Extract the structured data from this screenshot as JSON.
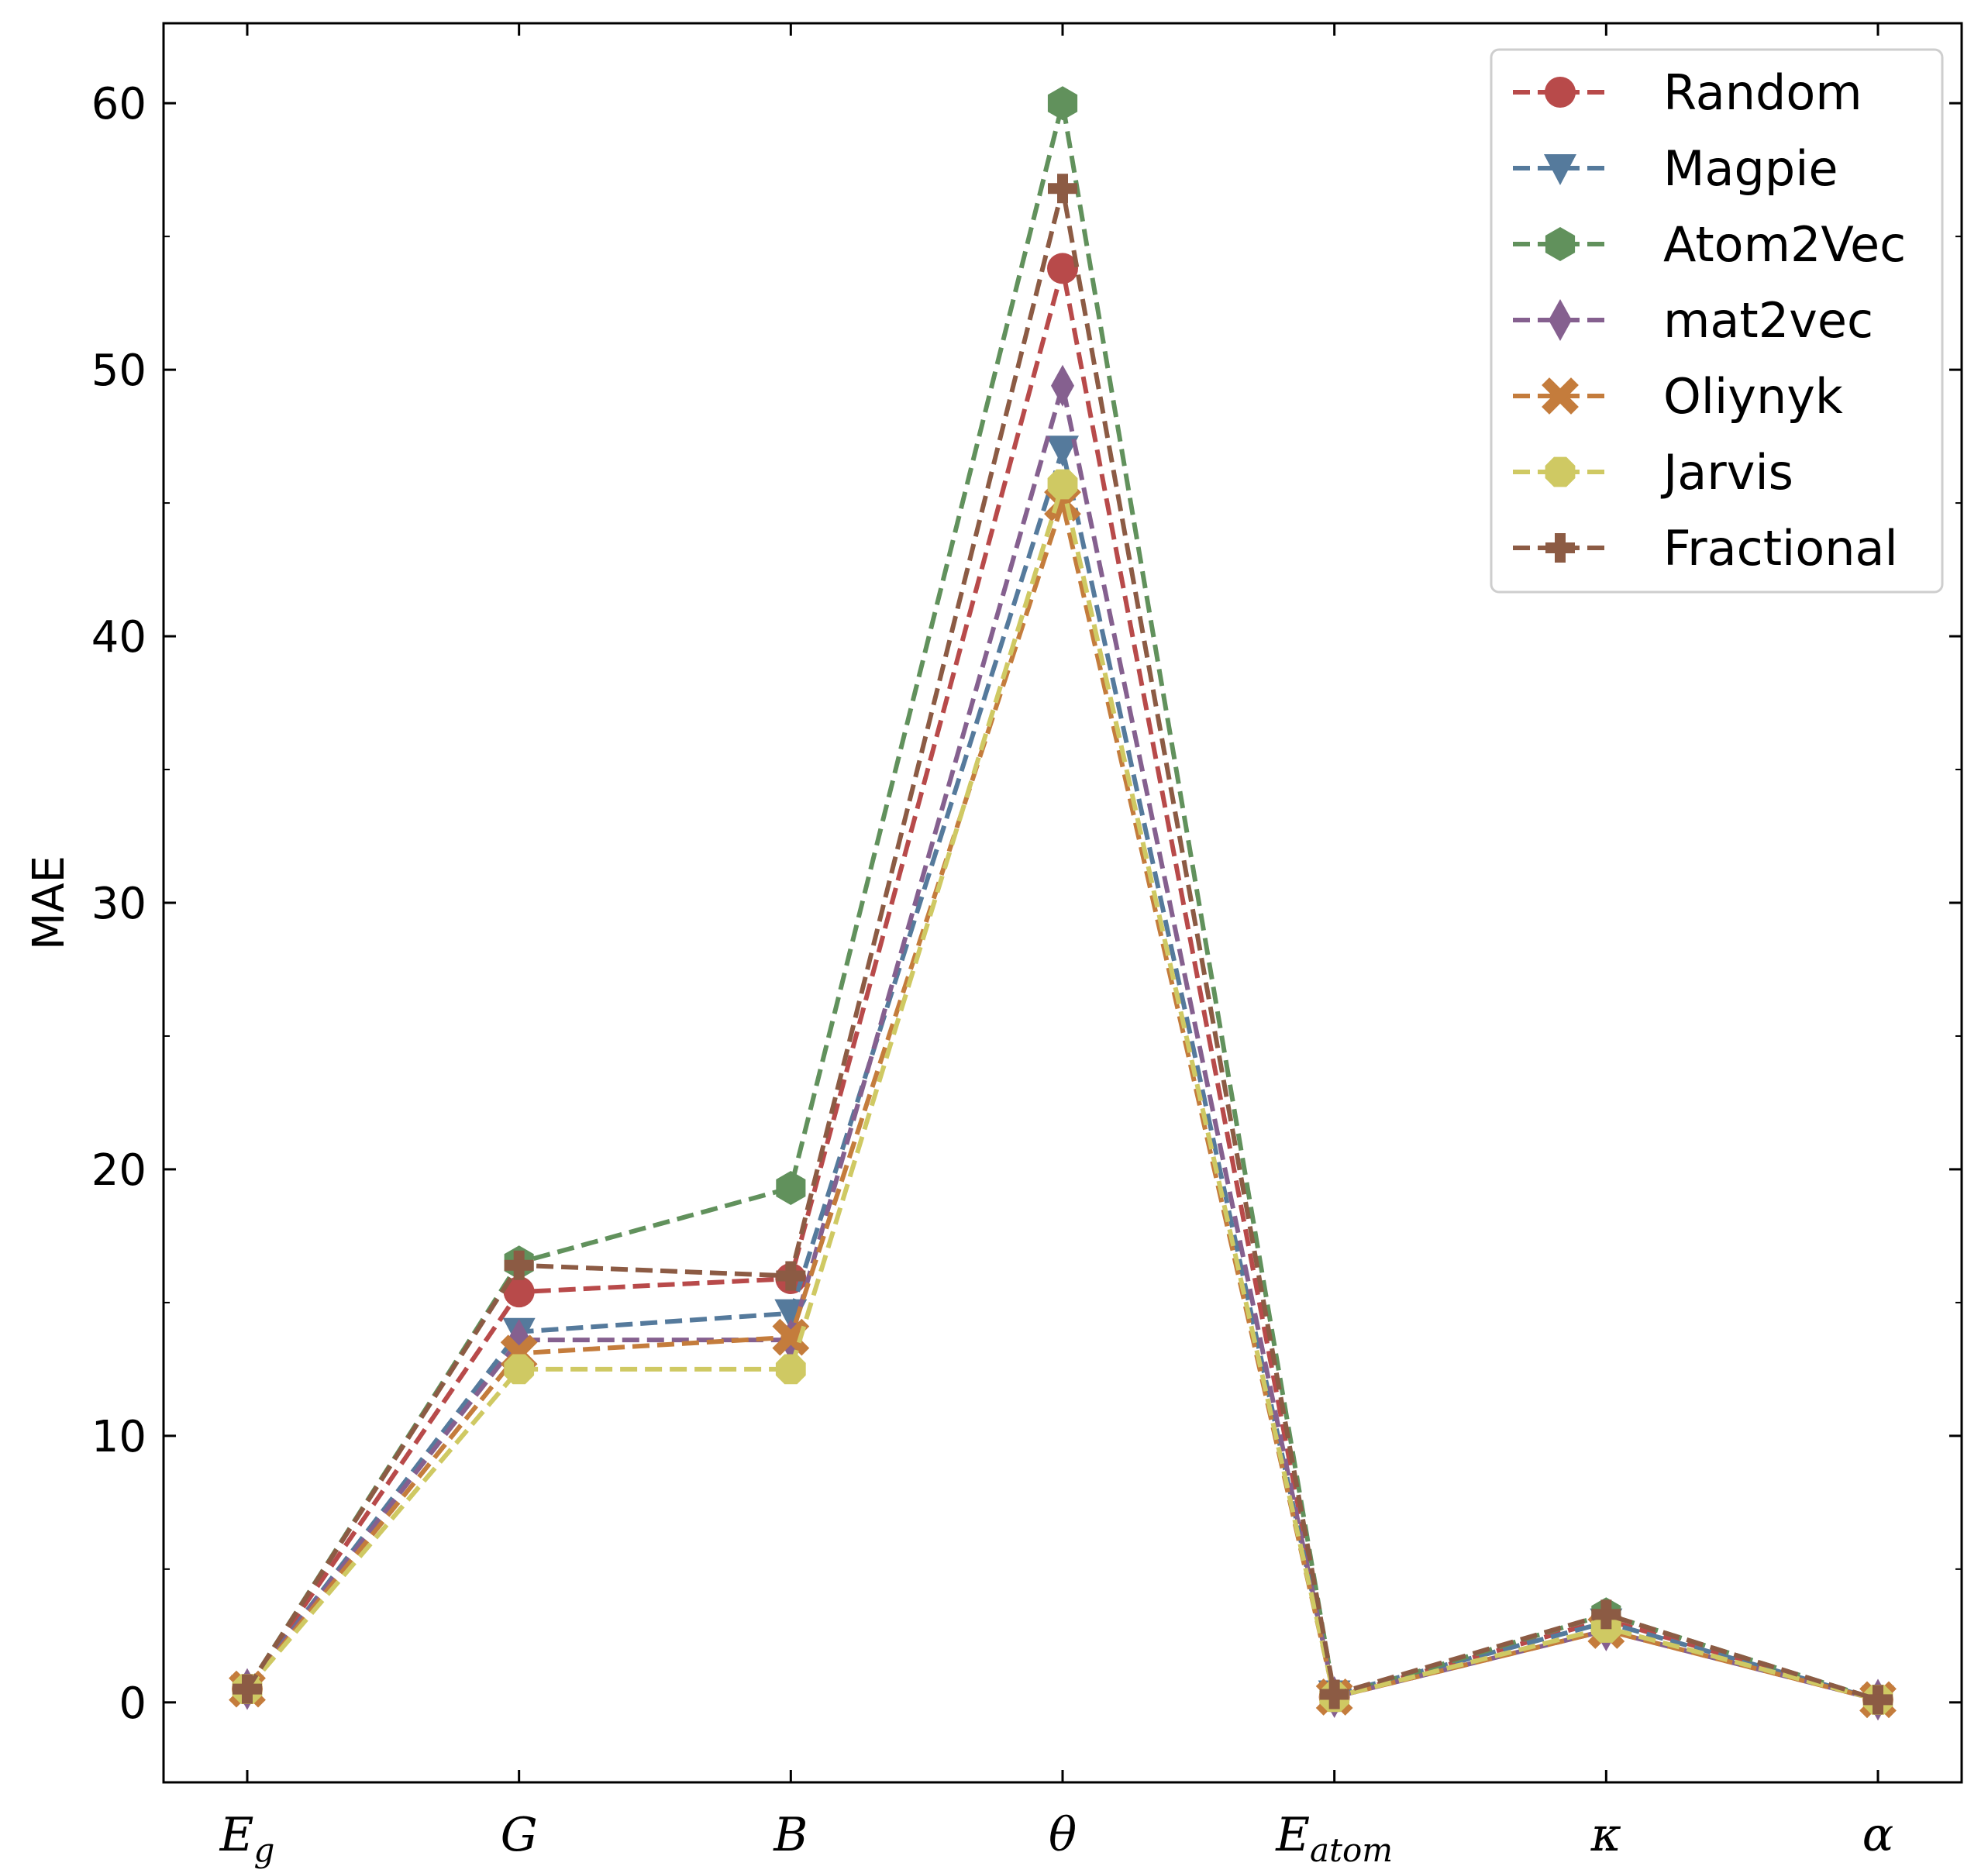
{
  "chart_data": {
    "type": "line",
    "title": "",
    "xlabel": "",
    "ylabel": "MAE",
    "categories": [
      {
        "main": "E",
        "sub": "g"
      },
      {
        "main": "G",
        "sub": ""
      },
      {
        "main": "B",
        "sub": ""
      },
      {
        "main": "θ",
        "sub": ""
      },
      {
        "main": "E",
        "sub": "atom"
      },
      {
        "main": "κ",
        "sub": ""
      },
      {
        "main": "α",
        "sub": ""
      }
    ],
    "ylim": [
      -3,
      63
    ],
    "yticks": [
      0,
      10,
      20,
      30,
      40,
      50,
      60
    ],
    "grid": false,
    "legend_position": "top-right",
    "line_style": "dashed",
    "series": [
      {
        "name": "Random",
        "color": "#b84a4a",
        "marker": "circle",
        "values": [
          0.5,
          15.4,
          15.9,
          53.8,
          0.2,
          3.1,
          0.1
        ]
      },
      {
        "name": "Magpie",
        "color": "#557a9c",
        "marker": "triangle-down",
        "values": [
          0.5,
          13.9,
          14.6,
          47.0,
          0.3,
          3.0,
          0.1
        ]
      },
      {
        "name": "Atom2Vec",
        "color": "#61915c",
        "marker": "hexagon",
        "values": [
          0.5,
          16.5,
          19.3,
          60.0,
          0.2,
          3.3,
          0.1
        ]
      },
      {
        "name": "mat2vec",
        "color": "#85608f",
        "marker": "diamond",
        "values": [
          0.5,
          13.6,
          13.6,
          49.4,
          0.2,
          2.7,
          0.1
        ]
      },
      {
        "name": "Oliynyk",
        "color": "#c47c3c",
        "marker": "x-filled",
        "values": [
          0.5,
          13.1,
          13.7,
          45.0,
          0.2,
          2.7,
          0.1
        ]
      },
      {
        "name": "Jarvis",
        "color": "#cfc963",
        "marker": "octagon",
        "values": [
          0.5,
          12.5,
          12.5,
          45.7,
          0.2,
          2.8,
          0.1
        ]
      },
      {
        "name": "Fractional",
        "color": "#8c5b44",
        "marker": "plus-filled",
        "values": [
          0.5,
          16.4,
          16.0,
          56.8,
          0.3,
          3.3,
          0.1
        ]
      }
    ]
  }
}
